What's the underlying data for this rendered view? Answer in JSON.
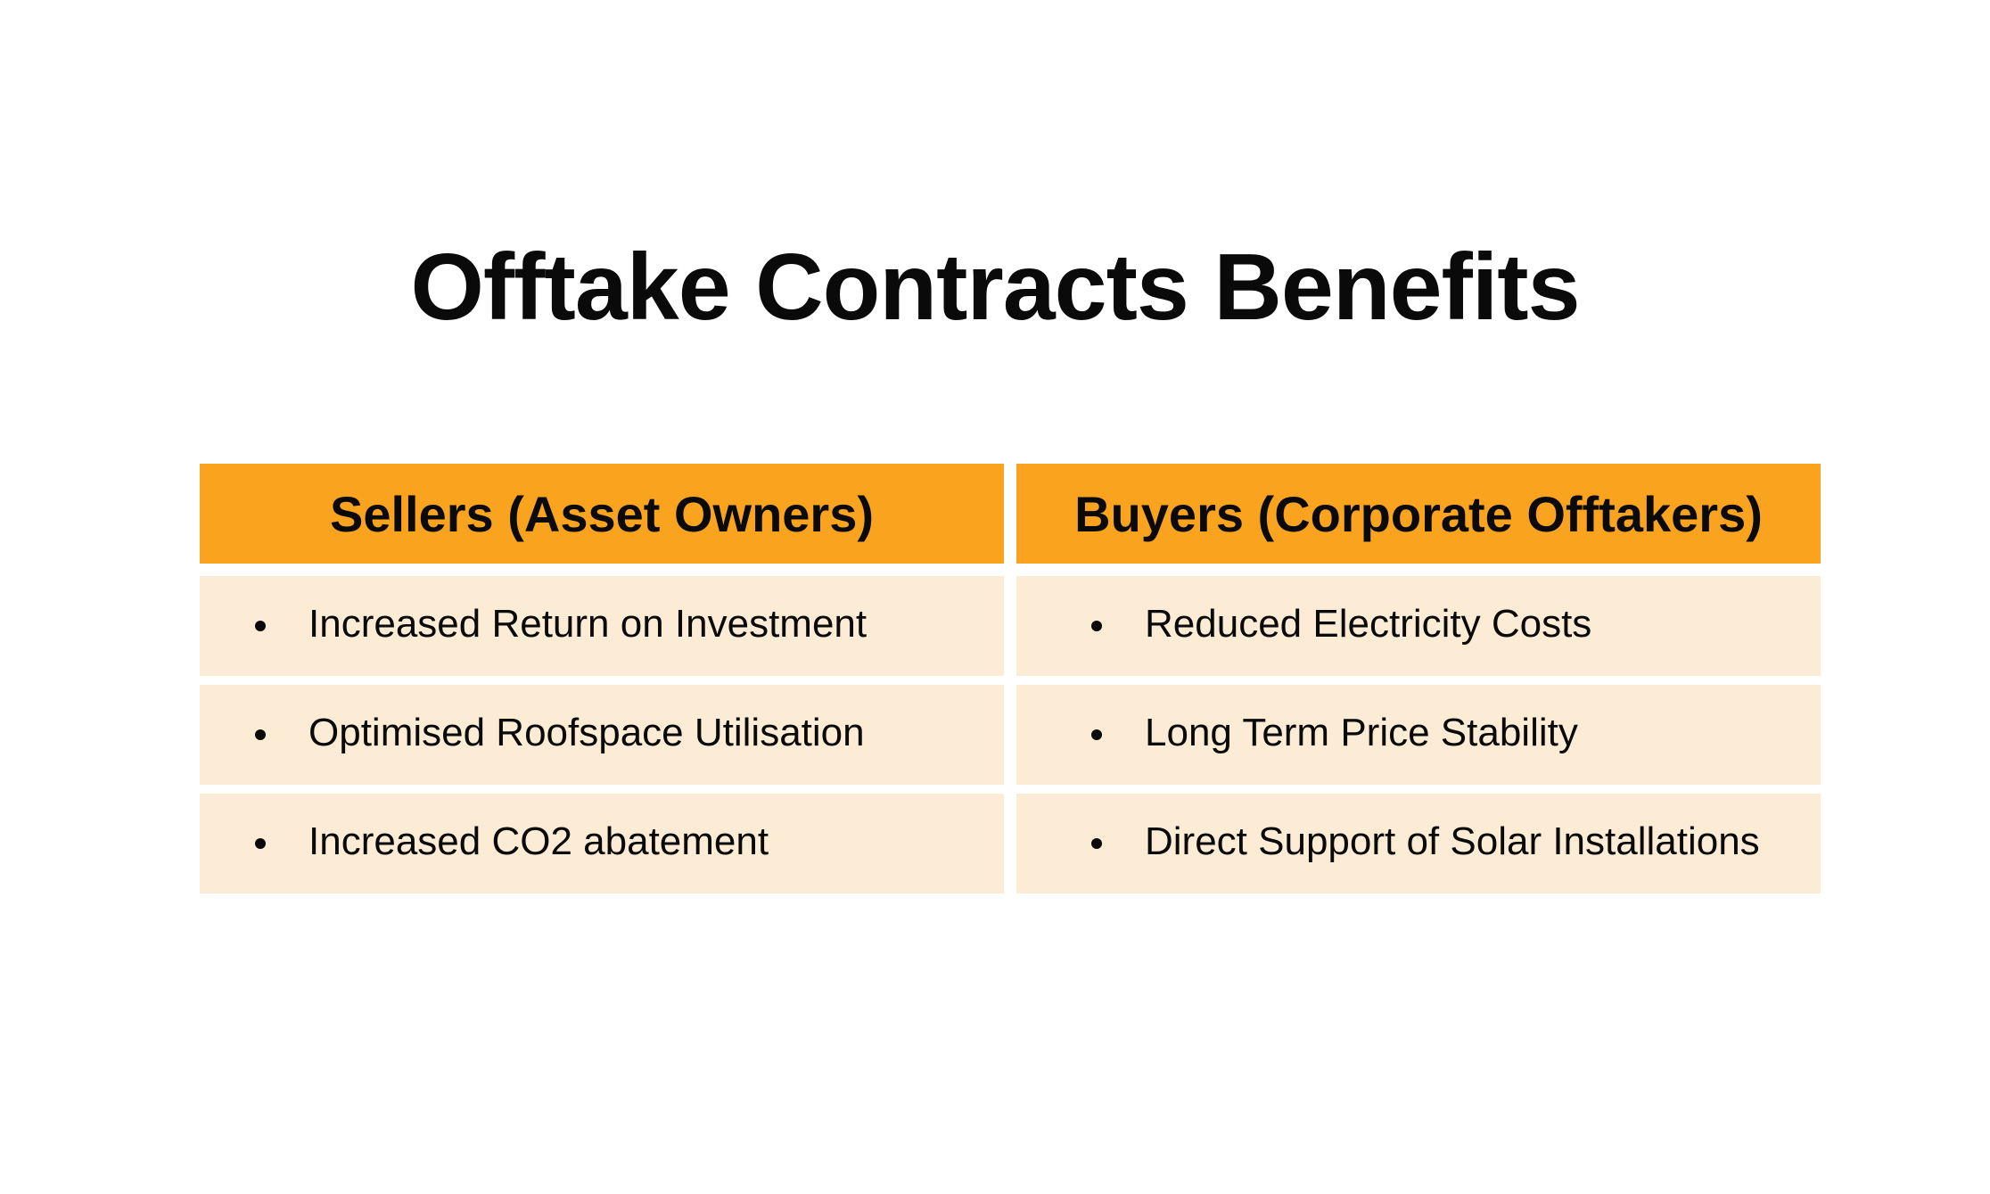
{
  "title": "Offtake Contracts Benefits",
  "columns": [
    {
      "header": "Sellers (Asset Owners)",
      "items": [
        "Increased Return on Investment",
        "Optimised Roofspace Utilisation",
        "Increased CO2 abatement"
      ]
    },
    {
      "header": "Buyers (Corporate Offtakers)",
      "items": [
        "Reduced Electricity Costs",
        "Long Term Price Stability",
        "Direct Support of Solar Installations"
      ]
    }
  ],
  "colors": {
    "header_bg": "#f9a31f",
    "row_bg": "#fdecd5",
    "text": "#0a0a0a"
  }
}
